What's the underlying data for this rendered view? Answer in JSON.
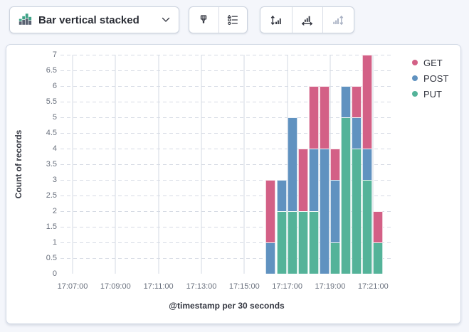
{
  "toolbar": {
    "chart_type": {
      "label": "Bar vertical stacked",
      "icon": "stacked-bar-chart-icon"
    },
    "style_buttons": [
      {
        "icon": "brush-icon"
      },
      {
        "icon": "visual-options-icon"
      }
    ],
    "axis_buttons": [
      {
        "icon": "left-axis-icon",
        "disabled": false
      },
      {
        "icon": "bottom-axis-icon",
        "disabled": false
      },
      {
        "icon": "right-axis-icon",
        "disabled": true
      }
    ]
  },
  "chart_data": {
    "type": "bar",
    "stacked": true,
    "orientation": "vertical",
    "xlabel": "@timestamp per 30 seconds",
    "ylabel": "Count of records",
    "ylim": [
      0,
      7
    ],
    "y_ticks": [
      0,
      0.5,
      1,
      1.5,
      2,
      2.5,
      3,
      3.5,
      4,
      4.5,
      5,
      5.5,
      6,
      6.5,
      7
    ],
    "x_axis_ticks": [
      "17:07:00",
      "17:09:00",
      "17:11:00",
      "17:13:00",
      "17:15:00",
      "17:17:00",
      "17:19:00",
      "17:21:00"
    ],
    "bin_seconds": 30,
    "categories": [
      "17:16:00",
      "17:16:30",
      "17:17:00",
      "17:17:30",
      "17:18:00",
      "17:18:30",
      "17:19:00",
      "17:19:30",
      "17:20:00",
      "17:20:30",
      "17:21:00"
    ],
    "series": [
      {
        "name": "GET",
        "color": "#D36086",
        "values": [
          2,
          0,
          0,
          2,
          2,
          2,
          1,
          0,
          1,
          3,
          1
        ]
      },
      {
        "name": "POST",
        "color": "#6092C0",
        "values": [
          1,
          1,
          3,
          0,
          2,
          4,
          2,
          1,
          1,
          1,
          0
        ]
      },
      {
        "name": "PUT",
        "color": "#54B399",
        "values": [
          0,
          2,
          2,
          2,
          2,
          0,
          1,
          5,
          4,
          3,
          1
        ]
      }
    ],
    "stack_order_bottom_to_top": [
      "PUT",
      "POST",
      "GET"
    ],
    "legend_position": "right",
    "grid": {
      "horizontal": "dashed",
      "vertical": "solid"
    }
  }
}
